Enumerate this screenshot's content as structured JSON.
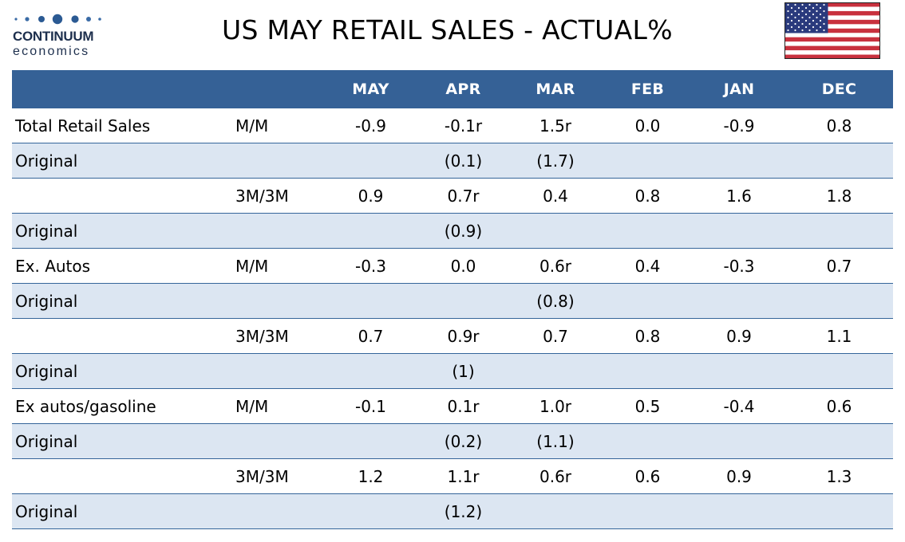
{
  "logo": {
    "line1": "CONTINUUM",
    "line2": "economics"
  },
  "title": "US MAY RETAIL SALES - ACTUAL%",
  "table": {
    "headers": [
      "",
      "",
      "MAY",
      "APR",
      "MAR",
      "FEB",
      "JAN",
      "DEC"
    ],
    "rows": [
      {
        "label": "Total Retail Sales",
        "measure": "M/M",
        "values": [
          "-0.9",
          "-0.1r",
          "1.5r",
          "0.0",
          "-0.9",
          "0.8"
        ]
      },
      {
        "label": "Original",
        "measure": "",
        "values": [
          "",
          "(0.1)",
          "(1.7)",
          "",
          "",
          ""
        ]
      },
      {
        "label": "",
        "measure": "3M/3M",
        "values": [
          "0.9",
          "0.7r",
          "0.4",
          "0.8",
          "1.6",
          "1.8"
        ]
      },
      {
        "label": "Original",
        "measure": "",
        "values": [
          "",
          "(0.9)",
          "",
          "",
          "",
          ""
        ]
      },
      {
        "label": "Ex. Autos",
        "measure": "M/M",
        "values": [
          "-0.3",
          "0.0",
          "0.6r",
          "0.4",
          "-0.3",
          "0.7"
        ]
      },
      {
        "label": "Original",
        "measure": "",
        "values": [
          "",
          "",
          "(0.8)",
          "",
          "",
          ""
        ]
      },
      {
        "label": "",
        "measure": "3M/3M",
        "values": [
          "0.7",
          "0.9r",
          "0.7",
          "0.8",
          "0.9",
          "1.1"
        ]
      },
      {
        "label": "Original",
        "measure": "",
        "values": [
          "",
          "(1)",
          "",
          "",
          "",
          ""
        ]
      },
      {
        "label": "Ex autos/gasoline",
        "measure": "M/M",
        "values": [
          "-0.1",
          "0.1r",
          "1.0r",
          "0.5",
          "-0.4",
          "0.6"
        ]
      },
      {
        "label": "Original",
        "measure": "",
        "values": [
          "",
          "(0.2)",
          "(1.1)",
          "",
          "",
          ""
        ]
      },
      {
        "label": "",
        "measure": "3M/3M",
        "values": [
          "1.2",
          "1.1r",
          "0.6r",
          "0.6",
          "0.9",
          "1.3"
        ]
      },
      {
        "label": "Original",
        "measure": "",
        "values": [
          "",
          "(1.2)",
          "",
          "",
          "",
          ""
        ]
      }
    ]
  },
  "colors": {
    "header_bg": "#356196",
    "header_text": "#ffffff",
    "alt_row_bg": "#dce6f2",
    "row_rule": "#35659a",
    "logo_blue": "#1d2f4d"
  },
  "icons": {
    "logo_mark": "dots-icon",
    "flag": "us-flag-icon"
  }
}
